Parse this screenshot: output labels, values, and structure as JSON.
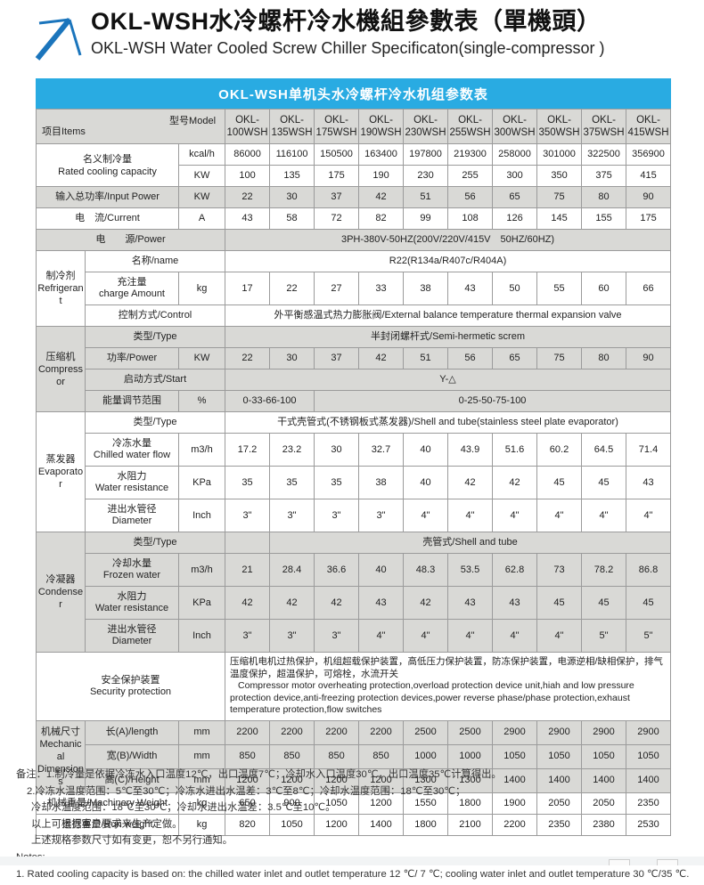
{
  "header": {
    "title_zh": "OKL-WSH水冷螺杆冷水機組參數表（單機頭）",
    "title_en": "OKL-WSH Water Cooled Screw Chiller Specificaton(single-compressor )",
    "logo_icon": "arrow-up-right-logo",
    "logo_color": "#1b75bc"
  },
  "colors": {
    "caption_band": "#29abe2",
    "row_gray": "#d9d9d6",
    "border": "#9b9b9b"
  },
  "table": {
    "caption": "OKL-WSH单机头水冷螺杆冷水机组参数表",
    "corner": {
      "items": "项目Items",
      "model": "型号Model"
    },
    "models": [
      "OKL-100WSH",
      "OKL-135WSH",
      "OKL-175WSH",
      "OKL-190WSH",
      "OKL-230WSH",
      "OKL-255WSH",
      "OKL-300WSH",
      "OKL-350WSH",
      "OKL-375WSH",
      "OKL-415WSH"
    ],
    "rows": [
      {
        "group": {
          "t": "名义制冷量\nRated cooling capacity",
          "rows": 2,
          "cols": 2
        },
        "unit": "kcal/h",
        "values": [
          "86000",
          "116100",
          "150500",
          "163400",
          "197800",
          "219300",
          "258000",
          "301000",
          "322500",
          "356900"
        ],
        "bg": "w",
        "sec": true
      },
      {
        "unit": "KW",
        "values": [
          "100",
          "135",
          "175",
          "190",
          "230",
          "255",
          "300",
          "350",
          "375",
          "415"
        ],
        "bg": "w"
      },
      {
        "label": {
          "t": "输入总功率/Input Power",
          "cols": 2
        },
        "unit": "KW",
        "values": [
          "22",
          "30",
          "37",
          "42",
          "51",
          "56",
          "65",
          "75",
          "80",
          "90"
        ],
        "bg": "g",
        "sec": true
      },
      {
        "label": {
          "t": "电　流/Current",
          "cols": 2
        },
        "unit": "A",
        "values": [
          "43",
          "58",
          "72",
          "82",
          "99",
          "108",
          "126",
          "145",
          "155",
          "175"
        ],
        "bg": "w",
        "sec": true
      },
      {
        "label": {
          "t": "电　　源/Power",
          "cols": 3
        },
        "spans": [
          {
            "c": 10,
            "t": "3PH-380V-50HZ(200V/220V/415V　50HZ/60HZ)"
          }
        ],
        "bg": "g",
        "sec": true
      },
      {
        "group": {
          "t": "制冷剂\nRefrigerant",
          "rows": 3,
          "cols": 1
        },
        "label": {
          "t": "名称/name",
          "cols": 2
        },
        "spans": [
          {
            "c": 10,
            "t": "R22(R134a/R407c/R404A)"
          }
        ],
        "bg": "w",
        "sec": true
      },
      {
        "label": {
          "t": "充注量\ncharge Amount",
          "cols": 1
        },
        "unit": "kg",
        "values": [
          "17",
          "22",
          "27",
          "33",
          "38",
          "43",
          "50",
          "55",
          "60",
          "66"
        ],
        "bg": "w"
      },
      {
        "label": {
          "t": "控制方式/Control",
          "cols": 2
        },
        "spans": [
          {
            "c": 10,
            "t": "外平衡感温式热力膨胀阀/External balance temperature thermal expansion valve"
          }
        ],
        "bg": "w"
      },
      {
        "group": {
          "t": "压缩机\nCompressor",
          "rows": 4,
          "cols": 1
        },
        "label": {
          "t": "类型/Type",
          "cols": 2
        },
        "spans": [
          {
            "c": 10,
            "t": "半封闭螺杆式/Semi-hermetic screm"
          }
        ],
        "bg": "g",
        "sec": true
      },
      {
        "label": {
          "t": "功率/Power",
          "cols": 1
        },
        "unit": "KW",
        "values": [
          "22",
          "30",
          "37",
          "42",
          "51",
          "56",
          "65",
          "75",
          "80",
          "90"
        ],
        "bg": "g"
      },
      {
        "label": {
          "t": "启动方式/Start",
          "cols": 2
        },
        "spans": [
          {
            "c": 10,
            "t": "Y-△"
          }
        ],
        "bg": "g"
      },
      {
        "label": {
          "t": "能量调节范围",
          "cols": 1
        },
        "unit": "%",
        "spans": [
          {
            "c": 2,
            "t": "0-33-66-100"
          },
          {
            "c": 8,
            "t": "0-25-50-75-100"
          }
        ],
        "bg": "g"
      },
      {
        "group": {
          "t": "蒸发器\nEvaporator",
          "rows": 4,
          "cols": 1
        },
        "label": {
          "t": "类型/Type",
          "cols": 2
        },
        "spans": [
          {
            "c": 10,
            "t": "干式壳管式(不锈钢板式蒸发器)/Shell and tube(stainless steel plate evaporator)"
          }
        ],
        "bg": "w",
        "sec": true
      },
      {
        "label": {
          "t": "冷冻水量\nChilled water flow",
          "cols": 1
        },
        "unit": "m3/h",
        "values": [
          "17.2",
          "23.2",
          "30",
          "32.7",
          "40",
          "43.9",
          "51.6",
          "60.2",
          "64.5",
          "71.4"
        ],
        "bg": "w"
      },
      {
        "label": {
          "t": "水阻力\nWater resistance",
          "cols": 1
        },
        "unit": "KPa",
        "values": [
          "35",
          "35",
          "35",
          "38",
          "40",
          "42",
          "42",
          "45",
          "45",
          "43"
        ],
        "bg": "w"
      },
      {
        "label": {
          "t": "进出水管径\nDiameter",
          "cols": 1
        },
        "unit": "Inch",
        "values": [
          "3\"",
          "3\"",
          "3\"",
          "3\"",
          "4\"",
          "4\"",
          "4\"",
          "4\"",
          "4\"",
          "4\""
        ],
        "bg": "w"
      },
      {
        "group": {
          "t": "冷凝器\nCondenser",
          "rows": 4,
          "cols": 1
        },
        "label": {
          "t": "类型/Type",
          "cols": 2
        },
        "spans": [
          {
            "c": 1,
            "t": ""
          },
          {
            "c": 9,
            "t": "壳管式/Shell and tube"
          }
        ],
        "bg": "g",
        "sec": true
      },
      {
        "label": {
          "t": "冷却水量\nFrozen water",
          "cols": 1
        },
        "unit": "m3/h",
        "values": [
          "21",
          "28.4",
          "36.6",
          "40",
          "48.3",
          "53.5",
          "62.8",
          "73",
          "78.2",
          "86.8"
        ],
        "bg": "g"
      },
      {
        "label": {
          "t": "水阻力\nWater resistance",
          "cols": 1
        },
        "unit": "KPa",
        "values": [
          "42",
          "42",
          "42",
          "43",
          "42",
          "43",
          "43",
          "45",
          "45",
          "45"
        ],
        "bg": "g"
      },
      {
        "label": {
          "t": "进出水管径\nDiameter",
          "cols": 1
        },
        "unit": "Inch",
        "values": [
          "3\"",
          "3\"",
          "3\"",
          "4\"",
          "4\"",
          "4\"",
          "4\"",
          "4\"",
          "5\"",
          "5\""
        ],
        "bg": "g"
      },
      {
        "label": {
          "t": "安全保护装置\nSecurity protection",
          "cols": 3
        },
        "spans": [
          {
            "c": 10,
            "security": true
          }
        ],
        "bg": "w",
        "sec": true
      },
      {
        "group": {
          "t": "机械尺寸\nMechanical\nDimensions",
          "rows": 3,
          "cols": 1
        },
        "label": {
          "t": "长(A)/length",
          "cols": 1
        },
        "unit": "mm",
        "values": [
          "2200",
          "2200",
          "2200",
          "2200",
          "2500",
          "2500",
          "2900",
          "2900",
          "2900",
          "2900"
        ],
        "bg": "g",
        "sec": true
      },
      {
        "label": {
          "t": "宽(B)/Width",
          "cols": 1
        },
        "unit": "mm",
        "values": [
          "850",
          "850",
          "850",
          "850",
          "1000",
          "1000",
          "1050",
          "1050",
          "1050",
          "1050"
        ],
        "bg": "g"
      },
      {
        "label": {
          "t": "高(C)/Height",
          "cols": 1
        },
        "unit": "mm",
        "values": [
          "1200",
          "1200",
          "1200",
          "1200",
          "1300",
          "1300",
          "1400",
          "1400",
          "1400",
          "1400"
        ],
        "bg": "g"
      },
      {
        "label": {
          "t": "机械重量/Machinery Weight",
          "cols": 2
        },
        "unit": "kg",
        "values": [
          "650",
          "900",
          "1050",
          "1200",
          "1550",
          "1800",
          "1900",
          "2050",
          "2050",
          "2350"
        ],
        "bg": "w",
        "sec": true
      },
      {
        "label": {
          "t": "运行重量/Run weight",
          "cols": 2
        },
        "unit": "kg",
        "values": [
          "820",
          "1050",
          "1200",
          "1400",
          "1800",
          "2100",
          "2200",
          "2350",
          "2380",
          "2530"
        ],
        "bg": "w"
      }
    ],
    "security": {
      "zh": "压缩机电机过热保护，机组超载保护装置，高低压力保护装置，防冻保护装置，电源逆相/缺相保护，排气温度保护，超温保护，可熔栓，水流开关",
      "en": "Compressor motor overheating protection,overload protection device unit,hiah and low pressure protection device,anti-freezing protection devices,power reverse phase/phase protection,exhaust temperature protection,flow switches"
    }
  },
  "notes": {
    "lines": [
      "备注：1.制冷量是依据冷冻水入口温度12℃，出口温度7℃；冷却水入口温度30℃，出口温度35℃计算得出。",
      "2.冷冻水温度范围：5℃至30℃；冷冻水进出水温差：3℃至8℃；冷却水温度范围：18℃至30℃；",
      "冷却水温度范围：18℃至30℃；冷却水进出水温差：3.5℃至10℃。",
      "以上可根据客户要求来生产定做。",
      "上述规格参数尺寸如有变更，恕不另行通知。",
      "Notes:",
      "1. Rated cooling capacity is based on: the chilled water inlet and outlet temperature 12 ℃/ 7 ℃; cooling water inlet and outlet temperature 30 ℃/35 ℃."
    ]
  }
}
